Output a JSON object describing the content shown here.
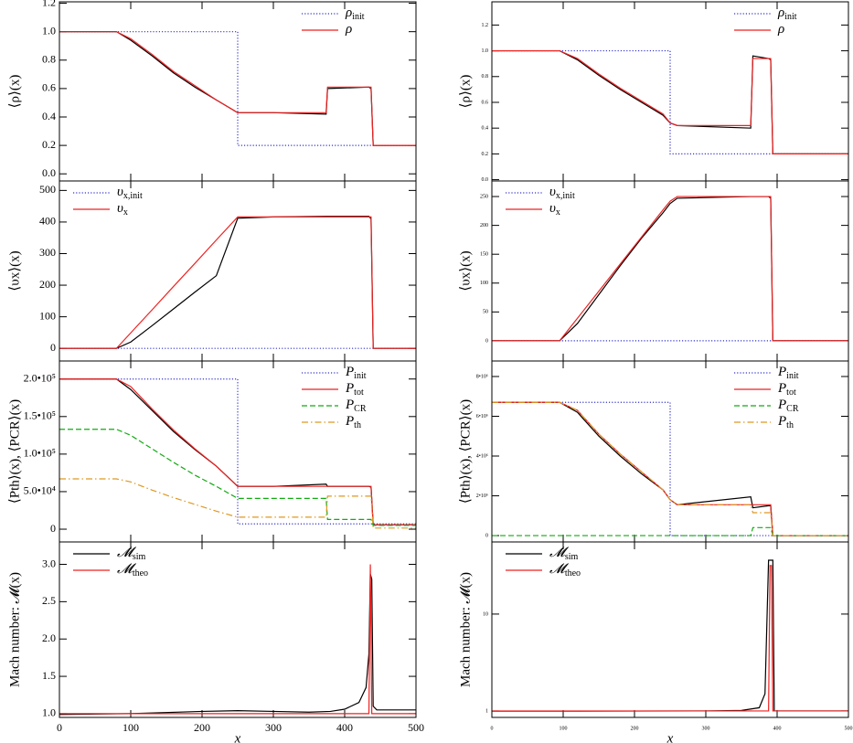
{
  "chart_data": [
    {
      "type": "line",
      "ylabel": "⟨ρ⟩(x)",
      "legend": "upper right",
      "xtick_labels": false,
      "xlim": [
        0,
        500
      ],
      "ylim": [
        -0.05,
        1.21
      ],
      "xticks": [
        0,
        100,
        200,
        300,
        400,
        500
      ],
      "yticks": [
        {
          "value": 0,
          "label": "0.0"
        },
        0.2,
        0.4,
        0.6,
        0.8,
        {
          "value": 1,
          "label": "1.0"
        },
        1.2
      ],
      "x": [
        0,
        80,
        100,
        130,
        160,
        190,
        220,
        250,
        250,
        300,
        374,
        376,
        434,
        437,
        440,
        500
      ],
      "series": [
        {
          "name": "ρ",
          "subscript": "init",
          "color": "#3333cc",
          "dash": "dotted",
          "values": [
            1,
            1,
            1,
            1,
            1,
            1,
            1,
            1,
            0.2,
            0.2,
            0.2,
            0.2,
            0.2,
            0.2,
            0.2,
            0.2
          ]
        },
        {
          "color": "#000000",
          "dash": "solid",
          "values": [
            1,
            1,
            0.94,
            0.83,
            0.71,
            0.61,
            0.52,
            0.43,
            0.43,
            0.43,
            0.42,
            0.6,
            0.61,
            0.6,
            0.2,
            0.2
          ]
        },
        {
          "name": "ρ",
          "color": "#ee2222",
          "dash": "solid",
          "values": [
            1,
            1,
            0.95,
            0.84,
            0.72,
            0.62,
            0.52,
            0.43,
            0.43,
            0.43,
            0.43,
            0.61,
            0.61,
            0.61,
            0.2,
            0.2
          ]
        }
      ]
    },
    {
      "type": "line",
      "ylabel": "⟨υx⟩(x)",
      "legend": "upper left",
      "xtick_labels": false,
      "xlim": [
        0,
        500
      ],
      "ylim": [
        -40,
        530
      ],
      "xticks": [
        0,
        100,
        200,
        300,
        400,
        500
      ],
      "yticks": [
        0,
        100,
        200,
        300,
        400,
        500
      ],
      "x": [
        0,
        80,
        100,
        130,
        160,
        190,
        220,
        250,
        250,
        300,
        374,
        376,
        434,
        437,
        440,
        500
      ],
      "series": [
        {
          "name": "υ",
          "subscript": "x,init",
          "color": "#3333cc",
          "dash": "dotted",
          "values": [
            0,
            0,
            0,
            0,
            0,
            0,
            0,
            0,
            0,
            0,
            0,
            0,
            0,
            0,
            0,
            0
          ]
        },
        {
          "color": "#000000",
          "dash": "solid",
          "values": [
            0,
            0,
            20,
            72,
            125,
            178,
            230,
            412,
            412,
            416,
            418,
            418,
            418,
            410,
            0,
            0
          ]
        },
        {
          "name": "υ",
          "subscript": "x",
          "color": "#ee2222",
          "dash": "solid",
          "values": [
            0,
            0,
            49,
            122,
            196,
            269,
            343,
            416,
            416,
            416,
            416,
            416,
            416,
            416,
            0,
            0
          ]
        }
      ]
    },
    {
      "type": "line",
      "ylabel": "⟨Pth⟩(x), ⟨PCR⟩(x)",
      "legend": "upper right",
      "xtick_labels": false,
      "xlim": [
        0,
        500
      ],
      "ylim": [
        -17000,
        224000
      ],
      "xticks": [
        0,
        100,
        200,
        300,
        400,
        500
      ],
      "yticks": [
        0,
        {
          "value": 50000,
          "label": "5.0•10⁴"
        },
        {
          "value": 100000,
          "label": "1.0•10⁵"
        },
        {
          "value": 150000,
          "label": "1.5•10⁵"
        },
        {
          "value": 200000,
          "label": "2.0•10⁵"
        }
      ],
      "x": [
        0,
        80,
        100,
        130,
        160,
        190,
        220,
        250,
        250,
        300,
        374,
        376,
        434,
        437,
        440,
        500
      ],
      "series": [
        {
          "name": "P",
          "subscript": "init",
          "color": "#3333cc",
          "dash": "dotted",
          "values": [
            200000,
            200000,
            200000,
            200000,
            200000,
            200000,
            200000,
            200000,
            7000,
            7000,
            7000,
            7000,
            7000,
            7000,
            7000,
            7000
          ]
        },
        {
          "color": "#000000",
          "dash": "solid",
          "values": [
            200000,
            200000,
            186000,
            158000,
            130000,
            106000,
            84000,
            57000,
            57000,
            57000,
            60000,
            57000,
            57000,
            56000,
            6000,
            6000
          ]
        },
        {
          "name": "P",
          "subscript": "tot",
          "color": "#ee2222",
          "dash": "solid",
          "values": [
            200000,
            200000,
            190000,
            160000,
            132000,
            107000,
            84000,
            57000,
            57000,
            57000,
            57000,
            57000,
            57000,
            57000,
            6000,
            6000
          ]
        },
        {
          "name": "P",
          "subscript": "CR",
          "color": "#11aa11",
          "dash": "dashed",
          "values": [
            133000,
            133000,
            125000,
            107000,
            89000,
            72000,
            57000,
            41000,
            41000,
            41000,
            41000,
            13000,
            13000,
            13000,
            5000,
            5000
          ]
        },
        {
          "name": "P",
          "subscript": "th",
          "color": "#dd9922",
          "dash": "dashdot",
          "values": [
            67000,
            67000,
            63000,
            52000,
            42000,
            33000,
            24000,
            16000,
            16000,
            16000,
            16000,
            44000,
            44000,
            44000,
            1500,
            1500
          ]
        }
      ]
    },
    {
      "type": "line",
      "ylabel": "Mach number: 𝓜(x)",
      "xlabel": "x",
      "legend": "upper left",
      "xtick_labels": true,
      "xlim": [
        0,
        500
      ],
      "ylim": [
        0.95,
        3.3
      ],
      "xticks": [
        0,
        100,
        200,
        300,
        400,
        500
      ],
      "yticks": [
        {
          "value": 1,
          "label": "1.0"
        },
        1.5,
        {
          "value": 2,
          "label": "2.0"
        },
        2.5,
        {
          "value": 3,
          "label": "3.0"
        }
      ],
      "x": [
        0,
        100,
        200,
        250,
        300,
        350,
        380,
        400,
        420,
        430,
        434,
        436,
        438,
        440,
        445,
        500
      ],
      "series": [
        {
          "name": "𝓜",
          "subscript": "sim",
          "color": "#000000",
          "dash": "solid",
          "values": [
            0.99,
            1,
            1.03,
            1.04,
            1.03,
            1.02,
            1.03,
            1.06,
            1.15,
            1.35,
            1.8,
            2.87,
            2.8,
            1.1,
            1.05,
            1.05
          ]
        },
        {
          "name": "𝓜",
          "subscript": "theo",
          "color": "#ee2222",
          "dash": "solid",
          "values": [
            1,
            1,
            1,
            1,
            1,
            1,
            1,
            1,
            1,
            1,
            1,
            3,
            1,
            1,
            1,
            1
          ]
        }
      ]
    },
    {
      "type": "line",
      "ylabel": "⟨ρ⟩(x)",
      "legend": "upper right",
      "xtick_labels": false,
      "xlim": [
        0,
        500
      ],
      "ylim": [
        -0.01,
        1.38
      ],
      "xticks": [
        0,
        100,
        200,
        300,
        400,
        500
      ],
      "yticks": [
        {
          "value": 0,
          "label": "0.0"
        },
        0.2,
        0.4,
        0.6,
        0.8,
        {
          "value": 1,
          "label": "1.0"
        },
        1.2
      ],
      "x": [
        0,
        95,
        120,
        150,
        180,
        210,
        240,
        250,
        250,
        260,
        363,
        366,
        388,
        391,
        394,
        500
      ],
      "series": [
        {
          "name": "ρ",
          "subscript": "init",
          "color": "#3333cc",
          "dash": "dotted",
          "values": [
            1,
            1,
            1,
            1,
            1,
            1,
            1,
            1,
            0.2,
            0.2,
            0.2,
            0.2,
            0.2,
            0.2,
            0.2,
            0.2
          ]
        },
        {
          "color": "#000000",
          "dash": "solid",
          "values": [
            1,
            1,
            0.93,
            0.81,
            0.7,
            0.6,
            0.5,
            0.44,
            0.44,
            0.42,
            0.4,
            0.96,
            0.94,
            0.93,
            0.2,
            0.2
          ]
        },
        {
          "name": "ρ",
          "color": "#ee2222",
          "dash": "solid",
          "values": [
            1,
            1,
            0.94,
            0.82,
            0.71,
            0.61,
            0.51,
            0.44,
            0.44,
            0.42,
            0.42,
            0.94,
            0.94,
            0.94,
            0.2,
            0.2
          ]
        }
      ]
    },
    {
      "type": "line",
      "ylabel": "⟨υx⟩(x)",
      "legend": "upper left",
      "xtick_labels": false,
      "xlim": [
        0,
        500
      ],
      "ylim": [
        -35,
        277
      ],
      "xticks": [
        0,
        100,
        200,
        300,
        400,
        500
      ],
      "yticks": [
        0,
        50,
        100,
        150,
        200,
        250
      ],
      "x": [
        0,
        95,
        120,
        150,
        180,
        210,
        240,
        250,
        250,
        260,
        363,
        366,
        388,
        391,
        394,
        500
      ],
      "series": [
        {
          "name": "υ",
          "subscript": "x,init",
          "color": "#3333cc",
          "dash": "dotted",
          "values": [
            0,
            0,
            0,
            0,
            0,
            0,
            0,
            0,
            0,
            0,
            0,
            0,
            0,
            0,
            0,
            0
          ]
        },
        {
          "color": "#000000",
          "dash": "solid",
          "values": [
            0,
            0,
            30,
            80,
            130,
            178,
            222,
            238,
            238,
            247,
            250,
            250,
            250,
            247,
            0,
            0
          ]
        },
        {
          "name": "υ",
          "subscript": "x",
          "color": "#ee2222",
          "dash": "solid",
          "values": [
            0,
            0,
            39,
            86,
            133,
            180,
            227,
            242,
            242,
            250,
            250,
            250,
            250,
            250,
            0,
            0
          ]
        }
      ]
    },
    {
      "type": "line",
      "ylabel": "⟨Pth⟩(x), ⟨PCR⟩(x)",
      "legend": "upper right",
      "xtick_labels": false,
      "xlim": [
        0,
        500
      ],
      "ylim": [
        -320000,
        8780000
      ],
      "xticks": [
        0,
        100,
        200,
        300,
        400,
        500
      ],
      "yticks": [
        0,
        {
          "value": 2000000,
          "label": "2•10⁶"
        },
        {
          "value": 4000000,
          "label": "4•10⁶"
        },
        {
          "value": 6000000,
          "label": "6•10⁶"
        },
        {
          "value": 8000000,
          "label": "8•10⁶"
        }
      ],
      "x": [
        0,
        95,
        120,
        150,
        180,
        210,
        240,
        250,
        250,
        260,
        363,
        366,
        388,
        391,
        394,
        500
      ],
      "series": [
        {
          "name": "P",
          "subscript": "init",
          "color": "#3333cc",
          "dash": "dotted",
          "values": [
            6700000,
            6700000,
            6700000,
            6700000,
            6700000,
            6700000,
            6700000,
            6700000,
            0,
            0,
            0,
            0,
            0,
            0,
            0,
            0
          ]
        },
        {
          "color": "#000000",
          "dash": "solid",
          "values": [
            6700000,
            6700000,
            6200000,
            5000000,
            4000000,
            3100000,
            2300000,
            1800000,
            1800000,
            1550000,
            1950000,
            1400000,
            1500000,
            1500000,
            0,
            0
          ]
        },
        {
          "name": "P",
          "subscript": "tot",
          "color": "#ee2222",
          "dash": "solid",
          "values": [
            6700000,
            6700000,
            6300000,
            5100000,
            4100000,
            3200000,
            2300000,
            1800000,
            1800000,
            1550000,
            1550000,
            1550000,
            1550000,
            1550000,
            0,
            0
          ]
        },
        {
          "name": "P",
          "subscript": "CR",
          "color": "#11aa11",
          "dash": "dashed",
          "values": [
            0,
            0,
            0,
            0,
            0,
            0,
            0,
            0,
            0,
            0,
            0,
            400000,
            400000,
            400000,
            0,
            0
          ]
        },
        {
          "name": "P",
          "subscript": "th",
          "color": "#dd9922",
          "dash": "dashdot",
          "values": [
            6700000,
            6700000,
            6300000,
            5100000,
            4100000,
            3200000,
            2300000,
            1800000,
            1800000,
            1550000,
            1550000,
            1150000,
            1150000,
            1150000,
            0,
            0
          ]
        }
      ]
    },
    {
      "type": "line",
      "ylabel": "Mach number: 𝓜(x)",
      "xlabel": "x",
      "legend": "upper left",
      "xtick_labels": true,
      "xlim": [
        0,
        500
      ],
      "ylim": [
        0.4,
        16.7
      ],
      "xticks": [
        0,
        100,
        200,
        300,
        400,
        500
      ],
      "yticks": [
        1,
        10
      ],
      "x": [
        0,
        100,
        200,
        300,
        350,
        375,
        383,
        388,
        390,
        392,
        394,
        396,
        500
      ],
      "series": [
        {
          "name": "𝓜",
          "subscript": "sim",
          "color": "#000000",
          "dash": "solid",
          "values": [
            0.98,
            0.98,
            0.99,
            1,
            1.05,
            1.3,
            2.6,
            15,
            15,
            15,
            15,
            1,
            1
          ]
        },
        {
          "name": "𝓜",
          "subscript": "theo",
          "color": "#ee2222",
          "dash": "solid",
          "values": [
            1,
            1,
            1,
            1,
            1,
            1,
            1,
            1,
            14.5,
            14.5,
            1,
            1,
            1
          ]
        }
      ]
    }
  ]
}
